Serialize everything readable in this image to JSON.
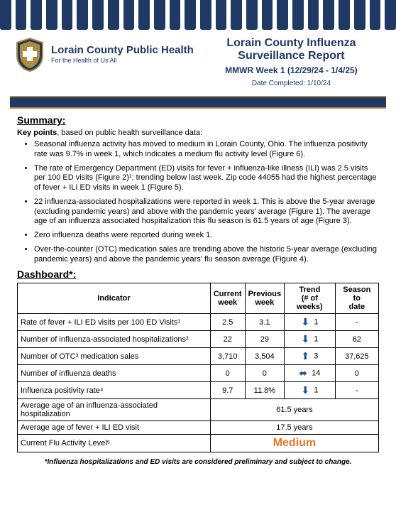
{
  "colors": {
    "navy": "#1f3864",
    "gold": "#b08c3e",
    "orange": "#e87722",
    "arrow": "#1f4e9c"
  },
  "header": {
    "org_name": "Lorain County Public Health",
    "org_tag": "For the Health of Us All",
    "title": "Lorain County Influenza Surveillance Report",
    "subtitle": "MMWR Week 1 (12/29/24 - 1/4/25)",
    "date": "Date Completed: 1/10/24"
  },
  "summary": {
    "heading": "Summary:",
    "intro_prefix": "Key points",
    "intro_suffix": ", based on public health surveillance data:",
    "bullets": [
      "Seasonal influenza activity has moved to medium in Lorain County, Ohio. The influenza positivity rate was 9.7% in week 1, which indicates a medium flu activity level (Figure 6).",
      "The rate of Emergency Department (ED) visits for fever + influenza-like illness (ILI) was 2.5 visits per 100 ED visits (Figure 2)¹; trending below last week. Zip code 44055 had the highest percentage of fever + ILI ED visits in week 1 (Figure 5).",
      "22 influenza-associated hospitalizations were reported in week 1. This is above the 5-year average (excluding pandemic years) and above with the pandemic years' average (Figure 1). The average age of an influenza associated hospitalization this flu season is 61.5 years of age (Figure 3).",
      "Zero influenza deaths were reported during week 1.",
      "Over-the-counter (OTC) medication sales are trending above the historic 5-year average (excluding pandemic years) and above the pandemic years' flu season average (Figure 4)."
    ]
  },
  "dashboard": {
    "heading": "Dashboard*:",
    "columns": [
      "Indicator",
      "Current week",
      "Previous week",
      "Trend (# of weeks)",
      "Season to date"
    ],
    "rows": [
      {
        "indicator": "Rate of fever + ILI ED visits per 100 ED Visits¹",
        "current": "2.5",
        "previous": "3.1",
        "trend_dir": "down",
        "trend_n": "1",
        "season": "-"
      },
      {
        "indicator": "Number of influenza-associated hospitalizations²",
        "current": "22",
        "previous": "29",
        "trend_dir": "down",
        "trend_n": "1",
        "season": "62"
      },
      {
        "indicator": "Number of OTC³ medication sales",
        "current": "3,710",
        "previous": "3,504",
        "trend_dir": "up",
        "trend_n": "3",
        "season": "37,625"
      },
      {
        "indicator": "Number of influenza deaths",
        "current": "0",
        "previous": "0",
        "trend_dir": "flat",
        "trend_n": "14",
        "season": "0"
      },
      {
        "indicator": "Influenza positivity rate⁴",
        "current": "9.7",
        "previous": "11.8%",
        "trend_dir": "down",
        "trend_n": "1",
        "season": "-"
      }
    ],
    "span_rows": [
      {
        "label": "Average age of an influenza-associated hospitalization",
        "value": "61.5 years"
      },
      {
        "label": "Average age of fever + ILI ED visit",
        "value": "17.5 years"
      }
    ],
    "activity_row": {
      "label": "Current Flu Activity Level⁵",
      "value": "Medium"
    },
    "footnote": "*Influenza hospitalizations and ED visits are considered preliminary and subject to change."
  }
}
